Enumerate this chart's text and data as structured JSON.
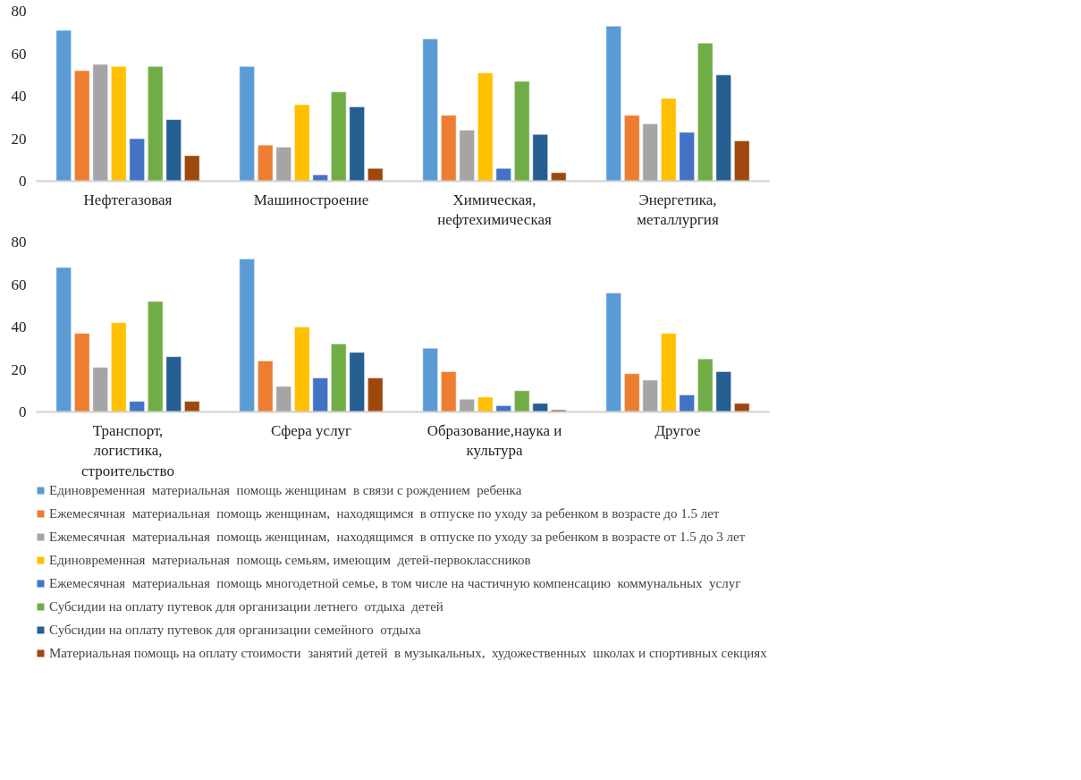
{
  "chart_data": [
    {
      "type": "bar",
      "categories": [
        "Нефтегазовая",
        "Машиностроение",
        "Химическая, нефтехимическая",
        "Энергетика, металлургия"
      ],
      "ylim": [
        0,
        80
      ],
      "yticks": [
        0,
        20,
        40,
        60,
        80
      ],
      "grid": false,
      "legend": false,
      "series": [
        {
          "color": "#5b9bd5",
          "values": [
            71,
            54,
            67,
            73
          ]
        },
        {
          "color": "#ed7d31",
          "values": [
            52,
            17,
            31,
            31
          ]
        },
        {
          "color": "#a5a5a5",
          "values": [
            55,
            16,
            24,
            27
          ]
        },
        {
          "color": "#ffc000",
          "values": [
            54,
            36,
            51,
            39
          ]
        },
        {
          "color": "#4472c4",
          "values": [
            20,
            3,
            6,
            23
          ]
        },
        {
          "color": "#70ad47",
          "values": [
            54,
            42,
            47,
            65
          ]
        },
        {
          "color": "#255e91",
          "values": [
            29,
            35,
            22,
            50
          ]
        },
        {
          "color": "#9e480e",
          "values": [
            12,
            6,
            4,
            19
          ]
        }
      ]
    },
    {
      "type": "bar",
      "categories": [
        "Транспорт, логистика, строительство",
        "Сфера услуг",
        "Образование,наука и культура",
        "Другое"
      ],
      "ylim": [
        0,
        80
      ],
      "yticks": [
        0,
        20,
        40,
        60,
        80
      ],
      "grid": false,
      "legend": "bottom",
      "series": [
        {
          "name": "Единовременная  материальная  помощь женщинам  в связи с рождением  ребенка",
          "color": "#5b9bd5",
          "values": [
            68,
            72,
            30,
            56
          ]
        },
        {
          "name": "Ежемесячная  материальная  помощь женщинам,  находящимся  в отпуске по уходу за ребенком в возрасте до 1.5 лет",
          "color": "#ed7d31",
          "values": [
            37,
            24,
            19,
            18
          ]
        },
        {
          "name": "Ежемесячная  материальная  помощь женщинам,  находящимся  в отпуске по уходу за ребенком в возрасте от 1.5 до 3 лет",
          "color": "#a5a5a5",
          "values": [
            21,
            12,
            6,
            15
          ]
        },
        {
          "name": "Единовременная  материальная  помощь семьям, имеющим  детей-первоклассников",
          "color": "#ffc000",
          "values": [
            42,
            40,
            7,
            37
          ]
        },
        {
          "name": "Ежемесячная  материальная  помощь многодетной семье, в том числе на частичную компенсацию  коммунальных  услуг",
          "color": "#4472c4",
          "values": [
            5,
            16,
            3,
            8
          ]
        },
        {
          "name": "Субсидии на оплату путевок для организации летнего  отдыха  детей",
          "color": "#70ad47",
          "values": [
            52,
            32,
            10,
            25
          ]
        },
        {
          "name": "Субсидии на оплату путевок для организации семейного  отдыха",
          "color": "#255e91",
          "values": [
            26,
            28,
            4,
            19
          ]
        },
        {
          "name": "Материальная помощь на оплату стоимости  занятий детей  в музыкальных,  художественных  школах и спортивных секциях",
          "color": "#9e480e",
          "values": [
            5,
            16,
            1,
            4
          ]
        }
      ]
    }
  ]
}
